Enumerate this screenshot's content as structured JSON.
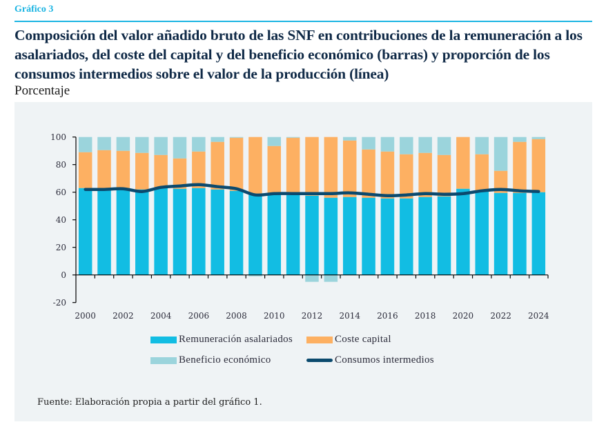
{
  "header": {
    "label": "Gráfico 3",
    "title": "Composición del valor añadido bruto de las SNF en contribuciones de la remuneración a los asalariados, del coste del capital y del beneficio económico (barras) y proporción de los consumos intermedios sobre el valor de la producción (línea)",
    "subtitle": "Porcentaje"
  },
  "source": "Fuente: Elaboración propia a partir del gráfico 1.",
  "colors": {
    "remuneracion": "#12bde3",
    "coste": "#fdb062",
    "beneficio": "#9bd4dc",
    "consumos": "#0b4a6e",
    "accent": "#1ab4e2"
  },
  "chart_data": {
    "type": "bar",
    "stacked": true,
    "title": "Composición del valor añadido bruto de las SNF en contribuciones de la remuneración a los asalariados, del coste del capital y del beneficio económico (barras) y proporción de los consumos intermedios sobre el valor de la producción (línea)",
    "xlabel": "",
    "ylabel": "Porcentaje",
    "ylim": [
      -20,
      100
    ],
    "yticks": [
      100,
      80,
      60,
      40,
      20,
      0,
      -20
    ],
    "grid": false,
    "legend_position": "bottom",
    "categories": [
      "2000",
      "2001",
      "2002",
      "2003",
      "2004",
      "2005",
      "2006",
      "2007",
      "2008",
      "2009",
      "2010",
      "2011",
      "2012",
      "2013",
      "2014",
      "2015",
      "2016",
      "2017",
      "2018",
      "2019",
      "2020",
      "2021",
      "2022",
      "2023",
      "2024"
    ],
    "xtick_labels": [
      "2000",
      "2002",
      "2004",
      "2006",
      "2008",
      "2010",
      "2012",
      "2014",
      "2016",
      "2018",
      "2020",
      "2022",
      "2024"
    ],
    "series": [
      {
        "name": "Remuneración asalariados",
        "type": "bar",
        "color": "#12bde3",
        "values": [
          63,
          63,
          63,
          62,
          63,
          62.5,
          63,
          62,
          61,
          58.5,
          58.5,
          58,
          57.5,
          56,
          56.5,
          56,
          55.5,
          55.5,
          56.5,
          57,
          62.5,
          61,
          59.5,
          59.5,
          60
        ]
      },
      {
        "name": "Coste capital",
        "type": "bar",
        "color": "#fdb062",
        "values": [
          26,
          27.5,
          27,
          26.5,
          24,
          22,
          26.5,
          34.5,
          38.5,
          41.5,
          35,
          41.5,
          42.5,
          44,
          41,
          35,
          34,
          32,
          32,
          30,
          37.5,
          26.5,
          16,
          37,
          38.5
        ]
      },
      {
        "name": "Beneficio económico",
        "type": "bar",
        "color": "#9bd4dc",
        "values": [
          11,
          9.5,
          10,
          11.5,
          13,
          15.5,
          10.5,
          3.5,
          0.5,
          -1,
          6.5,
          0.5,
          -5,
          -5,
          2.5,
          9,
          10.5,
          12.5,
          11.5,
          13,
          0,
          12.5,
          24.5,
          3.5,
          1.5
        ]
      },
      {
        "name": "Consumos intermedios",
        "type": "line",
        "color": "#0b4a6e",
        "values": [
          62,
          62,
          62.5,
          60.5,
          63.5,
          64.5,
          65.5,
          64,
          62.5,
          58,
          59,
          59,
          59,
          59,
          59.5,
          58.5,
          57.5,
          58,
          59,
          58.5,
          59,
          61,
          62,
          61,
          60.5
        ]
      }
    ]
  }
}
